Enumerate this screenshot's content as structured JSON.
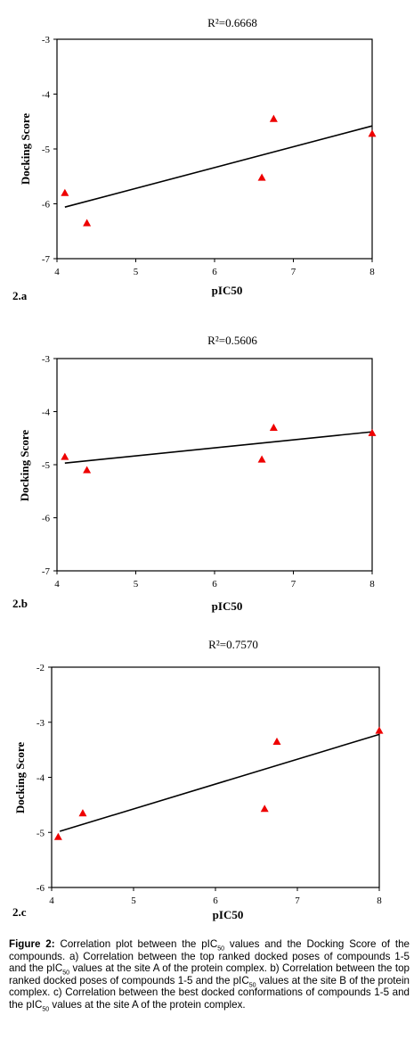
{
  "chart_data": [
    {
      "type": "scatter",
      "panel_label": "2.a",
      "title": "R²=0.6668",
      "xlabel": "pIC50",
      "ylabel": "Docking Score",
      "xlim": [
        4,
        8
      ],
      "ylim": [
        -7,
        -3
      ],
      "xticks": [
        "4",
        "5",
        "6",
        "7",
        "8"
      ],
      "yticks": [
        "-3",
        "-4",
        "-5",
        "-6",
        "-7"
      ],
      "x": [
        4.1,
        4.38,
        6.6,
        6.75,
        8.0
      ],
      "y": [
        -5.8,
        -6.35,
        -5.52,
        -4.45,
        -4.72
      ],
      "marker_color": "#ee0000",
      "trendline": [
        [
          4.1,
          -6.06
        ],
        [
          8.0,
          -4.58
        ]
      ]
    },
    {
      "type": "scatter",
      "panel_label": "2.b",
      "title": "R²=0.5606",
      "xlabel": "pIC50",
      "ylabel": "Docking Score",
      "xlim": [
        4,
        8
      ],
      "ylim": [
        -7,
        -3
      ],
      "xticks": [
        "4",
        "5",
        "6",
        "7",
        "8"
      ],
      "yticks": [
        "-3",
        "-4",
        "-5",
        "-6",
        "-7"
      ],
      "x": [
        4.1,
        4.38,
        6.6,
        6.75,
        8.0
      ],
      "y": [
        -4.85,
        -5.1,
        -4.9,
        -4.3,
        -4.4
      ],
      "marker_color": "#ee0000",
      "trendline": [
        [
          4.1,
          -4.97
        ],
        [
          8.0,
          -4.38
        ]
      ]
    },
    {
      "type": "scatter",
      "panel_label": "2.c",
      "title": "R²=0.7570",
      "xlabel": "pIC50",
      "ylabel": "Docking Score",
      "xlim": [
        4,
        8
      ],
      "ylim": [
        -6,
        -2
      ],
      "xticks": [
        "4",
        "5",
        "6",
        "7",
        "8"
      ],
      "yticks": [
        "-2",
        "-3",
        "-4",
        "-5",
        "-6"
      ],
      "x": [
        4.08,
        4.38,
        6.6,
        6.75,
        8.0
      ],
      "y": [
        -5.08,
        -4.65,
        -4.57,
        -3.35,
        -3.15
      ],
      "marker_color": "#ee0000",
      "trendline": [
        [
          4.1,
          -4.98
        ],
        [
          8.0,
          -3.22
        ]
      ]
    }
  ],
  "caption": {
    "label": "Figure 2:",
    "text_1": " Correlation plot between the pIC",
    "sub_1": "50",
    "text_2": " values and the Docking Score of the compounds. a) Correlation between the top ranked docked poses of compounds 1-5 and the pIC",
    "sub_2": "50",
    "text_3": " values at the site A of the protein complex. b) Correlation between the top ranked docked poses of compounds 1-5 and the pIC",
    "sub_3": "50",
    "text_4": " values at the site B of the protein complex. c) Correlation between the best docked conformations of compounds 1-5 and the pIC",
    "sub_4": "50",
    "text_5": " values at the site A of the protein complex."
  }
}
